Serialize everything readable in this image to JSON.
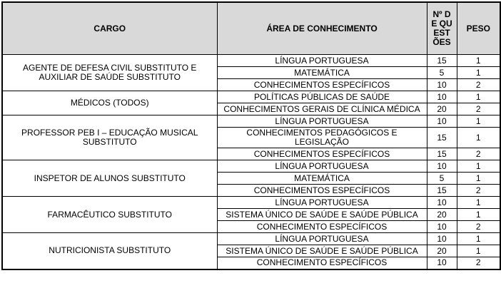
{
  "colors": {
    "header_bg": "#d9d9d9",
    "border": "#000000",
    "text": "#000000",
    "row_bg": "#ffffff"
  },
  "table": {
    "headers": {
      "cargo": "CARGO",
      "area": "ÁREA DE CONHECIMENTO",
      "questoes": "Nº DE QUESTÕES",
      "peso": "PESO"
    },
    "groups": [
      {
        "cargo": "AGENTE DE DEFESA CIVIL SUBSTITUTO E AUXILIAR DE SAÚDE SUBSTITUTO",
        "rows": [
          {
            "area": "LÍNGUA PORTUGUESA",
            "questoes": "15",
            "peso": "1"
          },
          {
            "area": "MATEMÁTICA",
            "questoes": "5",
            "peso": "1"
          },
          {
            "area": "CONHECIMENTOS ESPECÍFICOS",
            "questoes": "10",
            "peso": "2"
          }
        ]
      },
      {
        "cargo": "MÉDICOS (TODOS)",
        "rows": [
          {
            "area": "POLÍTICAS PÚBLICAS DE SAÚDE",
            "questoes": "10",
            "peso": "1"
          },
          {
            "area": "CONHECIMENTOS GERAIS DE CLÍNICA MÉDICA",
            "questoes": "20",
            "peso": "2"
          }
        ]
      },
      {
        "cargo": "PROFESSOR PEB I – EDUCAÇÃO MUSICAL SUBSTITUTO",
        "rows": [
          {
            "area": "LÍNGUA PORTUGUESA",
            "questoes": "10",
            "peso": "1"
          },
          {
            "area": "CONHECIMENTOS PEDAGÓGICOS E LEGISLAÇÃO",
            "questoes": "15",
            "peso": "1"
          },
          {
            "area": "CONHECIMENTOS ESPECÍFICOS",
            "questoes": "15",
            "peso": "2"
          }
        ]
      },
      {
        "cargo": "INSPETOR DE ALUNOS SUBSTITUTO",
        "rows": [
          {
            "area": "LÍNGUA PORTUGUESA",
            "questoes": "10",
            "peso": "1"
          },
          {
            "area": "MATEMÁTICA",
            "questoes": "5",
            "peso": "1"
          },
          {
            "area": "CONHECIMENTOS ESPECÍFICOS",
            "questoes": "15",
            "peso": "2"
          }
        ]
      },
      {
        "cargo": "FARMACÊUTICO SUBSTITUTO",
        "rows": [
          {
            "area": "LÍNGUA PORTUGUESA",
            "questoes": "10",
            "peso": "1"
          },
          {
            "area": "SISTEMA ÚNICO DE SAÚDE E SAÚDE PÚBLICA",
            "questoes": "20",
            "peso": "1"
          },
          {
            "area": "CONHECIMENTO ESPECÍFICOS",
            "questoes": "10",
            "peso": "2"
          }
        ]
      },
      {
        "cargo": "NUTRICIONISTA SUBSTITUTO",
        "rows": [
          {
            "area": "LÍNGUA PORTUGUESA",
            "questoes": "10",
            "peso": "1"
          },
          {
            "area": "SISTEMA ÚNICO DE SAÚDE E SAÚDE PÚBLICA",
            "questoes": "20",
            "peso": "1"
          },
          {
            "area": "CONHECIMENTO ESPECÍFICOS",
            "questoes": "10",
            "peso": "2"
          }
        ]
      }
    ]
  }
}
